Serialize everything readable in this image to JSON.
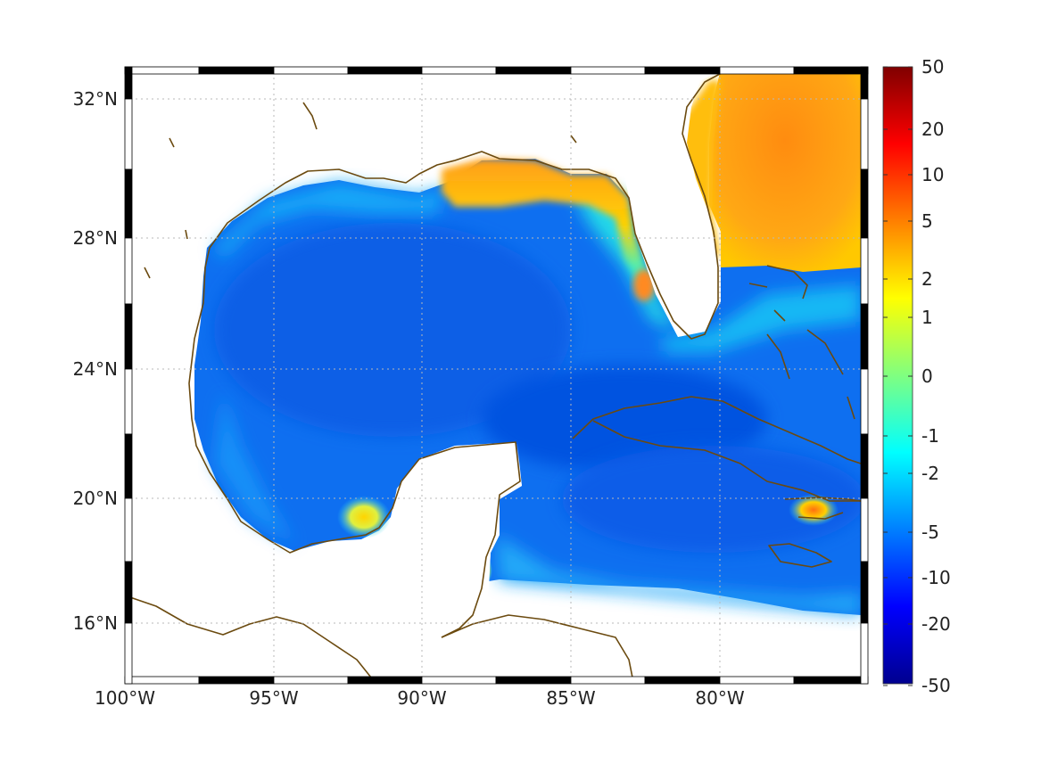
{
  "map": {
    "lon_ticks": [
      "100°W",
      "95°W",
      "90°W",
      "85°W",
      "80°W"
    ],
    "lat_ticks": [
      "32°N",
      "28°N",
      "24°N",
      "20°N",
      "16°N"
    ],
    "lon_range": [
      -100,
      -75
    ],
    "lat_range": [
      14.3,
      33
    ]
  },
  "colorbar": {
    "tick_labels": [
      "50",
      "20",
      "10",
      "5",
      "2",
      "1",
      "0",
      "-1",
      "-2",
      "-5",
      "-10",
      "-20",
      "-50"
    ],
    "colormap": "jet",
    "scale": "nonlinear-symmetric"
  },
  "colors": {
    "coastline": "#6b4a0f",
    "open_gulf": "#0a64e8",
    "shelf": "#10c8f0",
    "warm_shelf": "#ffb400",
    "atlantic": "#ff9a10",
    "land": "#ffffff"
  }
}
